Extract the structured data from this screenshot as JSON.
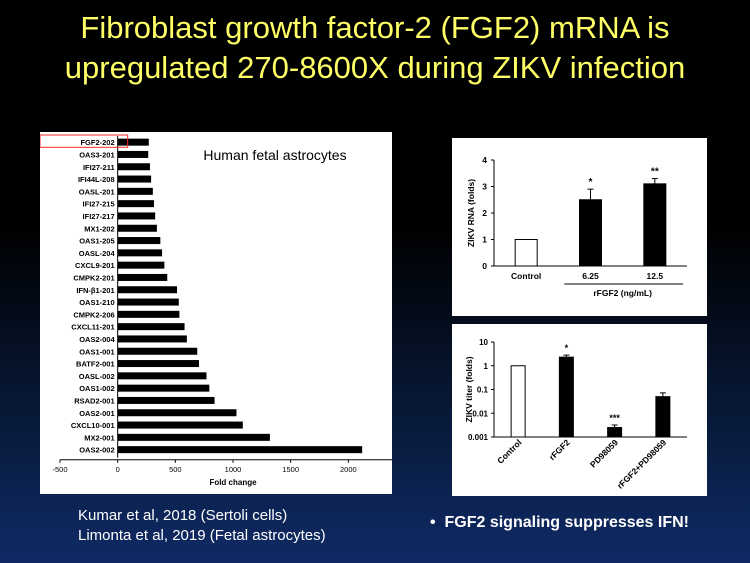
{
  "slide": {
    "title_line1": "Fibroblast growth factor-2 (FGF2) mRNA is",
    "title_line2": "upregulated 270-8600X during ZIKV infection",
    "references": [
      "Kumar et al, 2018 (Sertoli cells)",
      "Limonta et al, 2019 (Fetal astrocytes)"
    ],
    "bullet": "FGF2 signaling suppresses IFN!",
    "bullet_marker": "•"
  },
  "colors": {
    "title": "#ffff66",
    "bar": "#000000",
    "highlight": "#ff2a2a",
    "text": "#ffffff"
  },
  "chart_data": [
    {
      "type": "bar",
      "orientation": "horizontal",
      "annotation": "Human fetal astrocytes",
      "xlabel": "Fold change",
      "xlim": [
        -500,
        2500
      ],
      "xticks": [
        "-500",
        "0",
        "500",
        "1000",
        "1500",
        "2000",
        "2500"
      ],
      "highlighted": "FGF2-202",
      "categories": [
        "FGF2-202",
        "OAS3-201",
        "IFI27-211",
        "IFI44L-208",
        "OASL-201",
        "IFI27-215",
        "IFI27-217",
        "MX1-202",
        "OAS1-205",
        "OASL-204",
        "CXCL9-201",
        "CMPK2-201",
        "IFN-β1-201",
        "OAS1-210",
        "CMPK2-206",
        "CXCL11-201",
        "OAS2-004",
        "OAS1-001",
        "BATF2-001",
        "OASL-002",
        "OAS1-002",
        "RSAD2-001",
        "OAS2-001",
        "CXCL10-001",
        "MX2-001",
        "OAS2-002"
      ],
      "values": [
        270,
        265,
        280,
        290,
        305,
        315,
        325,
        340,
        370,
        385,
        405,
        430,
        515,
        530,
        535,
        580,
        600,
        690,
        705,
        770,
        795,
        840,
        1030,
        1085,
        1320,
        2120
      ]
    },
    {
      "type": "bar",
      "ylabel": "ZIKV RNA (folds)",
      "xlabel": "rFGF2 (ng/mL)",
      "ylim": [
        0,
        4
      ],
      "yticks": [
        "0",
        "1",
        "2",
        "3",
        "4"
      ],
      "categories": [
        "Control",
        "6.25",
        "12.5"
      ],
      "values": [
        1.0,
        2.5,
        3.1
      ],
      "errors": [
        0,
        0.4,
        0.2
      ],
      "fills": [
        "white",
        "black",
        "black"
      ],
      "significance": [
        "",
        "*",
        "**"
      ]
    },
    {
      "type": "bar",
      "ylabel": "ZIKV titer (folds)",
      "yscale": "log",
      "ylim": [
        0.001,
        10
      ],
      "yticks": [
        "0.001",
        "0.01",
        "0.1",
        "1",
        "10"
      ],
      "categories": [
        "Control",
        "rFGF2",
        "PD98059",
        "rFGF2+PD98059"
      ],
      "values": [
        1.0,
        2.3,
        0.0025,
        0.05
      ],
      "errors_upper": [
        0,
        2.8,
        0.0032,
        0.072
      ],
      "fills": [
        "white",
        "black",
        "black",
        "black"
      ],
      "significance": [
        "",
        "*",
        "***",
        ""
      ]
    }
  ]
}
